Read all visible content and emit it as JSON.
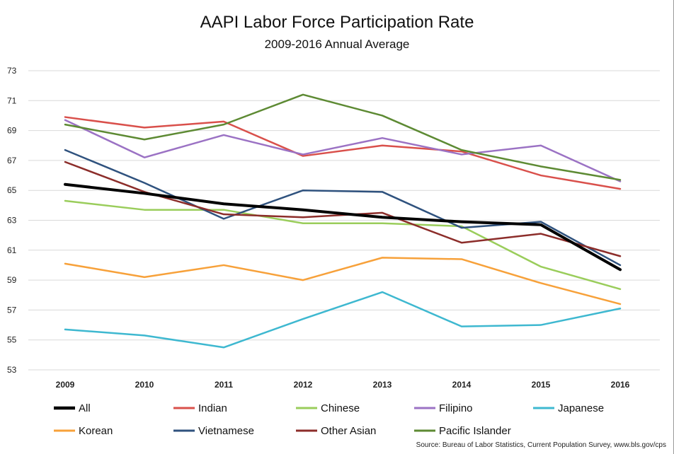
{
  "chart_data": {
    "type": "line",
    "title": "AAPI Labor Force Participation Rate",
    "subtitle": "2009-2016 Annual Average",
    "xlabel": "",
    "ylabel": "",
    "categories": [
      "2009",
      "2010",
      "2011",
      "2012",
      "2013",
      "2014",
      "2015",
      "2016"
    ],
    "ylim": [
      53,
      73
    ],
    "yticks": [
      53,
      55,
      57,
      59,
      61,
      63,
      65,
      67,
      69,
      71,
      73
    ],
    "grid": true,
    "legend_position": "bottom",
    "series": [
      {
        "name": "All",
        "color": "#000000",
        "width": 4,
        "values": [
          65.4,
          64.8,
          64.1,
          63.7,
          63.2,
          62.9,
          62.7,
          59.7
        ]
      },
      {
        "name": "Indian",
        "color": "#d9504b",
        "width": 2.5,
        "values": [
          69.9,
          69.2,
          69.6,
          67.3,
          68.0,
          67.6,
          66.0,
          65.1
        ]
      },
      {
        "name": "Chinese",
        "color": "#9acd5b",
        "width": 2.5,
        "values": [
          64.3,
          63.7,
          63.7,
          62.8,
          62.8,
          62.6,
          59.9,
          58.4
        ]
      },
      {
        "name": "Filipino",
        "color": "#9b72c4",
        "width": 2.5,
        "values": [
          69.7,
          67.2,
          68.7,
          67.4,
          68.5,
          67.4,
          68.0,
          65.6
        ]
      },
      {
        "name": "Japanese",
        "color": "#3eb8d0",
        "width": 2.5,
        "values": [
          55.7,
          55.3,
          54.5,
          56.4,
          58.2,
          55.9,
          56.0,
          57.1
        ]
      },
      {
        "name": "Korean",
        "color": "#f7a13a",
        "width": 2.5,
        "values": [
          60.1,
          59.2,
          60.0,
          59.0,
          60.5,
          60.4,
          58.8,
          57.4
        ]
      },
      {
        "name": "Vietnamese",
        "color": "#2f527e",
        "width": 2.5,
        "values": [
          67.7,
          65.5,
          63.1,
          65.0,
          64.9,
          62.5,
          62.9,
          60.0
        ]
      },
      {
        "name": "Other Asian",
        "color": "#8c2d2a",
        "width": 2.5,
        "values": [
          66.9,
          64.9,
          63.4,
          63.2,
          63.5,
          61.5,
          62.1,
          60.6
        ]
      },
      {
        "name": "Pacific Islander",
        "color": "#5d8a33",
        "width": 2.5,
        "values": [
          69.4,
          68.4,
          69.4,
          71.4,
          70.0,
          67.7,
          66.6,
          65.7
        ]
      }
    ]
  },
  "source": "Source: Bureau of Labor Statistics, Current Population Survey, www.bls.gov/cps"
}
